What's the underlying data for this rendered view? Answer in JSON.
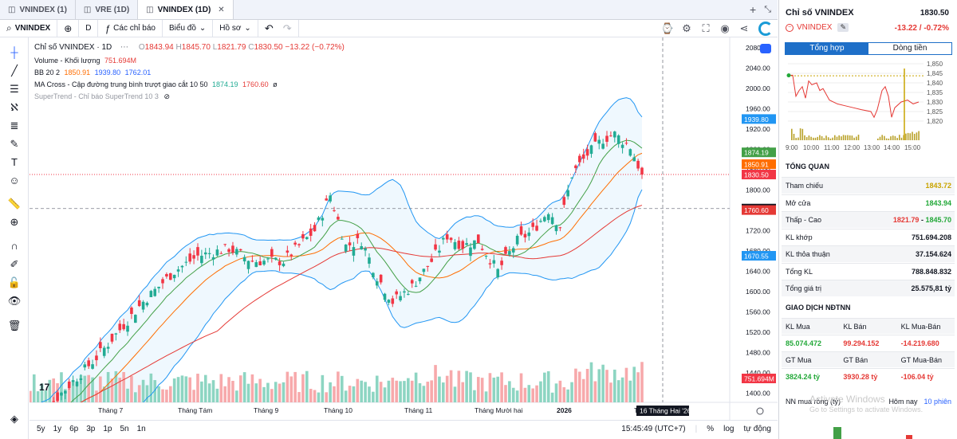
{
  "tabs": [
    {
      "label": "VNINDEX (1)",
      "active": false,
      "closable": false
    },
    {
      "label": "VRE (1D)",
      "active": false,
      "closable": false
    },
    {
      "label": "VNINDEX (1D)",
      "active": true,
      "closable": true
    }
  ],
  "toolbar": {
    "symbol": "VNINDEX",
    "interval": "D",
    "indicators_label": "Các chỉ báo",
    "chart_type_label": "Biểu đồ",
    "profile_label": "Hồ sơ"
  },
  "legend": {
    "title": "Chỉ số VNINDEX · 1D",
    "ohlc": {
      "o_label": "O",
      "o": "1843.94",
      "h_label": "H",
      "h": "1845.70",
      "l_label": "L",
      "l": "1821.79",
      "c_label": "C",
      "c": "1830.50",
      "change": "−13.22 (−0.72%)"
    },
    "volume": {
      "label": "Volume - Khối lượng",
      "value": "751.694M"
    },
    "bb": {
      "label": "BB 20 2",
      "mid": "1850.91",
      "upper": "1939.80",
      "lower": "1762.01"
    },
    "ma_cross": {
      "label": "MA Cross - Cập đường trung bình trượt giao cắt 10 50",
      "fast": "1874.19",
      "slow": "1760.60",
      "extra": "ø"
    },
    "supertrend": {
      "label": "SuperTrend - Chỉ báo SuperTrend 10 3"
    }
  },
  "price_axis": {
    "ticks": [
      "2080.00",
      "2040.00",
      "2000.00",
      "1960.00",
      "1920.00",
      "1880.00",
      "1840.00",
      "1800.00",
      "1760.00",
      "1720.00",
      "1680.00",
      "1640.00",
      "1600.00",
      "1560.00",
      "1520.00",
      "1480.00",
      "1440.00",
      "1400.00"
    ],
    "badges": [
      {
        "value": "1939.80",
        "color": "#2196f3"
      },
      {
        "value": "1874.19",
        "color": "#43a047"
      },
      {
        "value": "1850.91",
        "color": "#ff6d00"
      },
      {
        "value": "1830.50",
        "color": "#f23645"
      },
      {
        "value": "1763.48",
        "color": "#131722"
      },
      {
        "value": "1760.60",
        "color": "#e53935"
      },
      {
        "value": "1670.55",
        "color": "#2196f3"
      },
      {
        "value": "751.694M",
        "color": "#f23645"
      }
    ]
  },
  "time_axis": {
    "labels": [
      "Tháng 7",
      "Tháng Tám",
      "Tháng 9",
      "Tháng 10",
      "Tháng 11",
      "Tháng Mười hai",
      "2026",
      "Tháng 3"
    ],
    "cursor_label": "16 Tháng Hai '26"
  },
  "bottom": {
    "ranges": [
      "5y",
      "1y",
      "6p",
      "3p",
      "1p",
      "5n",
      "1n"
    ],
    "clock": "15:45:49 (UTC+7)",
    "percent": "%",
    "log": "log",
    "auto": "tự động"
  },
  "chart_data": {
    "type": "candlestick",
    "symbol": "VNINDEX",
    "interval": "1D",
    "last": {
      "open": 1843.94,
      "high": 1845.7,
      "low": 1821.79,
      "close": 1830.5
    },
    "ylim": [
      1400,
      2080
    ],
    "indicators": [
      "Volume",
      "BB 20 2",
      "MA Cross 10 50",
      "SuperTrend 10 3"
    ]
  },
  "panel": {
    "title": "Chỉ số VNINDEX",
    "price": "1830.50",
    "symbol": "VNINDEX",
    "change": "-13.22 / -0.72%",
    "tabs": [
      "Tổng hợp",
      "Dòng tiền"
    ],
    "intraday": {
      "y_ticks": [
        "1,850",
        "1,845",
        "1,840",
        "1,835",
        "1,830",
        "1,825",
        "1,820"
      ],
      "x_ticks": [
        "9:00",
        "10:00",
        "11:00",
        "12:00",
        "13:00",
        "14:00",
        "15:00"
      ]
    },
    "overview_title": "TỔNG QUAN",
    "overview": [
      {
        "label": "Tham chiếu",
        "value": "1843.72",
        "color": "#c9a400"
      },
      {
        "label": "Mở cửa",
        "value": "1843.94",
        "color": "#22a838"
      },
      {
        "label": "Thấp - Cao",
        "value": "",
        "low": "1821.79",
        "sep": " - ",
        "high": "1845.70",
        "color": "#131722"
      },
      {
        "label": "KL khớp",
        "value": "751.694.208",
        "color": "#131722"
      },
      {
        "label": "KL thỏa thuận",
        "value": "37.154.624",
        "color": "#131722"
      },
      {
        "label": "Tổng KL",
        "value": "788.848.832",
        "color": "#131722"
      },
      {
        "label": "Tổng giá trị",
        "value": "25.575,81 tỷ",
        "color": "#131722"
      }
    ],
    "foreign_title": "GIAO DỊCH NĐTNN",
    "foreign": {
      "heads1": [
        "KL Mua",
        "KL Bán",
        "KL Mua-Bán"
      ],
      "vals1": [
        "85.074.472",
        "99.294.152",
        "-14.219.680"
      ],
      "heads2": [
        "GT Mua",
        "GT Bán",
        "GT Mua-Bán"
      ],
      "vals2": [
        "3824.24 tỷ",
        "3930.28 tỷ",
        "-106.04 tỷ"
      ]
    },
    "nn_label": "NN mua ròng (tỷ)",
    "nn_today": "Hôm nay",
    "nn_10": "10 phiên",
    "watermark1": "Activate Windows",
    "watermark2": "Go to Settings to activate Windows."
  }
}
